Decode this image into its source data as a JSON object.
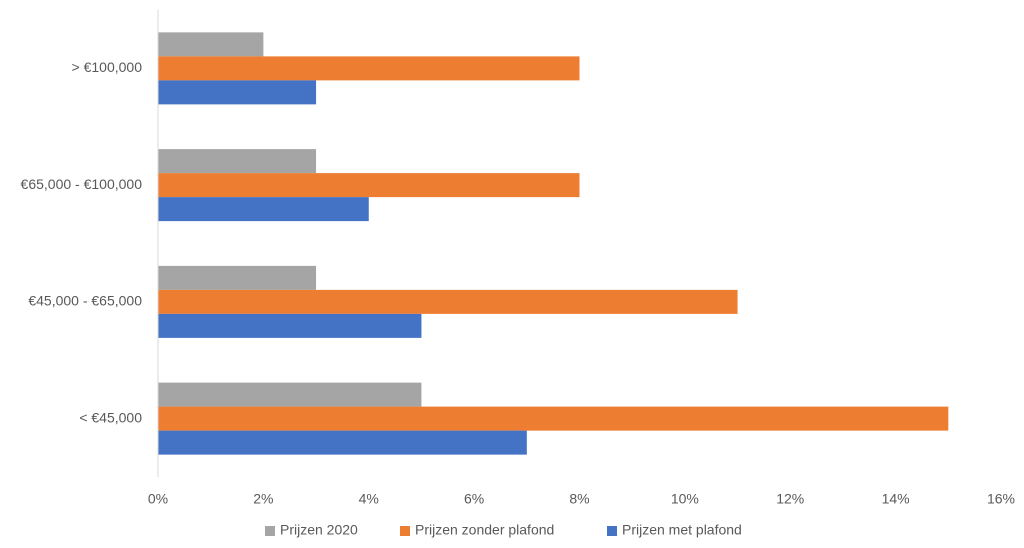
{
  "chart_data": {
    "type": "hbar",
    "categories": [
      "> €100,000",
      "€65,000 - €100,000",
      "€45,000 - €65,000",
      "< €45,000"
    ],
    "series": [
      {
        "name": "Prijzen 2020",
        "color": "#a5a5a5",
        "values": [
          2,
          3,
          3,
          5
        ]
      },
      {
        "name": "Prijzen zonder plafond",
        "color": "#ed7d31",
        "values": [
          8,
          8,
          11,
          15
        ]
      },
      {
        "name": "Prijzen met plafond",
        "color": "#4472c4",
        "values": [
          3,
          4,
          5,
          7
        ]
      }
    ],
    "xlim": [
      0,
      16
    ],
    "xticks": [
      {
        "value": 0,
        "label": "0%"
      },
      {
        "value": 2,
        "label": "2%"
      },
      {
        "value": 4,
        "label": "4%"
      },
      {
        "value": 6,
        "label": "6%"
      },
      {
        "value": 8,
        "label": "8%"
      },
      {
        "value": 10,
        "label": "10%"
      },
      {
        "value": 12,
        "label": "12%"
      },
      {
        "value": 14,
        "label": "14%"
      },
      {
        "value": 16,
        "label": "16%"
      }
    ],
    "grid": false,
    "legend": "bottom"
  }
}
